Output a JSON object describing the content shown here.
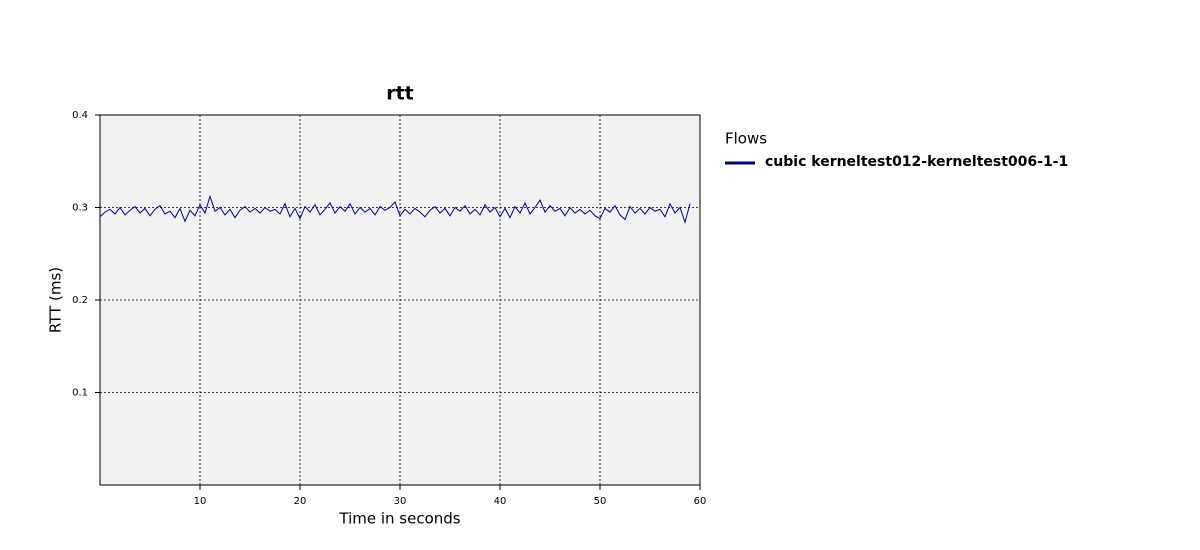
{
  "chart_data": {
    "type": "line",
    "title": "rtt",
    "xlabel": "Time in seconds",
    "ylabel": "RTT (ms)",
    "legend_title": "Flows",
    "legend": "right",
    "grid": true,
    "xlim": [
      0,
      60
    ],
    "xticks": [
      10,
      20,
      30,
      40,
      50,
      60
    ],
    "ylim": [
      0,
      0.4
    ],
    "yticks": [
      0.1,
      0.2,
      0.3,
      0.4
    ],
    "x": [
      0,
      0.5,
      1,
      1.5,
      2,
      2.5,
      3,
      3.5,
      4,
      4.5,
      5,
      5.5,
      6,
      6.5,
      7,
      7.5,
      8,
      8.5,
      9,
      9.5,
      10,
      10.5,
      11,
      11.5,
      12,
      12.5,
      13,
      13.5,
      14,
      14.5,
      15,
      15.5,
      16,
      16.5,
      17,
      17.5,
      18,
      18.5,
      19,
      19.5,
      20,
      20.5,
      21,
      21.5,
      22,
      22.5,
      23,
      23.5,
      24,
      24.5,
      25,
      25.5,
      26,
      26.5,
      27,
      27.5,
      28,
      28.5,
      29,
      29.5,
      30,
      30.5,
      31,
      31.5,
      32,
      32.5,
      33,
      33.5,
      34,
      34.5,
      35,
      35.5,
      36,
      36.5,
      37,
      37.5,
      38,
      38.5,
      39,
      39.5,
      40,
      40.5,
      41,
      41.5,
      42,
      42.5,
      43,
      43.5,
      44,
      44.5,
      45,
      45.5,
      46,
      46.5,
      47,
      47.5,
      48,
      48.5,
      49,
      49.5,
      50,
      50.5,
      51,
      51.5,
      52,
      52.5,
      53,
      53.5,
      54,
      54.5,
      55,
      55.5,
      56,
      56.5,
      57,
      57.5,
      58,
      58.5,
      59
    ],
    "series": [
      {
        "name": "cubic kerneltest012-kerneltest006-1-1",
        "color": "#00008b",
        "values": [
          0.29,
          0.295,
          0.298,
          0.293,
          0.3,
          0.292,
          0.297,
          0.301,
          0.294,
          0.299,
          0.291,
          0.298,
          0.302,
          0.293,
          0.296,
          0.289,
          0.299,
          0.285,
          0.297,
          0.291,
          0.303,
          0.294,
          0.312,
          0.296,
          0.3,
          0.292,
          0.298,
          0.289,
          0.297,
          0.301,
          0.295,
          0.299,
          0.294,
          0.3,
          0.296,
          0.298,
          0.293,
          0.304,
          0.29,
          0.299,
          0.288,
          0.301,
          0.295,
          0.303,
          0.292,
          0.298,
          0.305,
          0.294,
          0.301,
          0.296,
          0.304,
          0.293,
          0.3,
          0.295,
          0.299,
          0.292,
          0.301,
          0.297,
          0.3,
          0.306,
          0.291,
          0.298,
          0.293,
          0.299,
          0.295,
          0.29,
          0.297,
          0.301,
          0.294,
          0.299,
          0.291,
          0.3,
          0.296,
          0.302,
          0.293,
          0.298,
          0.292,
          0.303,
          0.295,
          0.3,
          0.29,
          0.299,
          0.289,
          0.301,
          0.294,
          0.305,
          0.293,
          0.3,
          0.308,
          0.295,
          0.302,
          0.296,
          0.299,
          0.291,
          0.3,
          0.294,
          0.298,
          0.293,
          0.297,
          0.291,
          0.288,
          0.299,
          0.295,
          0.302,
          0.292,
          0.287,
          0.301,
          0.294,
          0.299,
          0.293,
          0.3,
          0.296,
          0.298,
          0.29,
          0.304,
          0.294,
          0.3,
          0.284,
          0.304
        ]
      }
    ]
  }
}
